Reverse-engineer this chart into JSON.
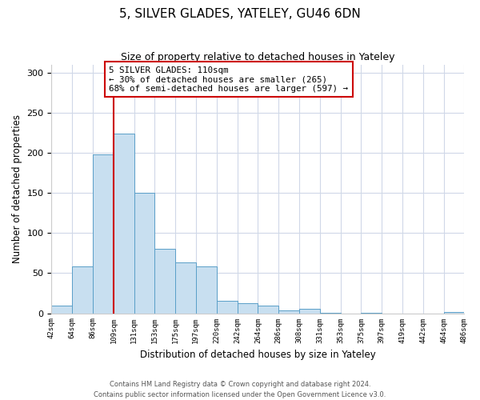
{
  "title": "5, SILVER GLADES, YATELEY, GU46 6DN",
  "subtitle": "Size of property relative to detached houses in Yateley",
  "xlabel": "Distribution of detached houses by size in Yateley",
  "ylabel": "Number of detached properties",
  "bar_edges": [
    42,
    64,
    86,
    109,
    131,
    153,
    175,
    197,
    220,
    242,
    264,
    286,
    308,
    331,
    353,
    375,
    397,
    419,
    442,
    464,
    486
  ],
  "bar_heights": [
    10,
    58,
    198,
    224,
    150,
    80,
    63,
    58,
    16,
    13,
    10,
    4,
    6,
    1,
    0,
    1,
    0,
    0,
    0,
    2
  ],
  "bar_color": "#c8dff0",
  "bar_edgecolor": "#5a9fc8",
  "property_line_x": 109,
  "property_line_color": "#cc0000",
  "ylim": [
    0,
    310
  ],
  "yticks": [
    0,
    50,
    100,
    150,
    200,
    250,
    300
  ],
  "annotation_text": "5 SILVER GLADES: 110sqm\n← 30% of detached houses are smaller (265)\n68% of semi-detached houses are larger (597) →",
  "annotation_box_edgecolor": "#cc0000",
  "footer_line1": "Contains HM Land Registry data © Crown copyright and database right 2024.",
  "footer_line2": "Contains public sector information licensed under the Open Government Licence v3.0.",
  "tick_labels": [
    "42sqm",
    "64sqm",
    "86sqm",
    "109sqm",
    "131sqm",
    "153sqm",
    "175sqm",
    "197sqm",
    "220sqm",
    "242sqm",
    "264sqm",
    "286sqm",
    "308sqm",
    "331sqm",
    "353sqm",
    "375sqm",
    "397sqm",
    "419sqm",
    "442sqm",
    "464sqm",
    "486sqm"
  ],
  "grid_color": "#d0d8e8",
  "figwidth": 6.0,
  "figheight": 5.0,
  "dpi": 100
}
